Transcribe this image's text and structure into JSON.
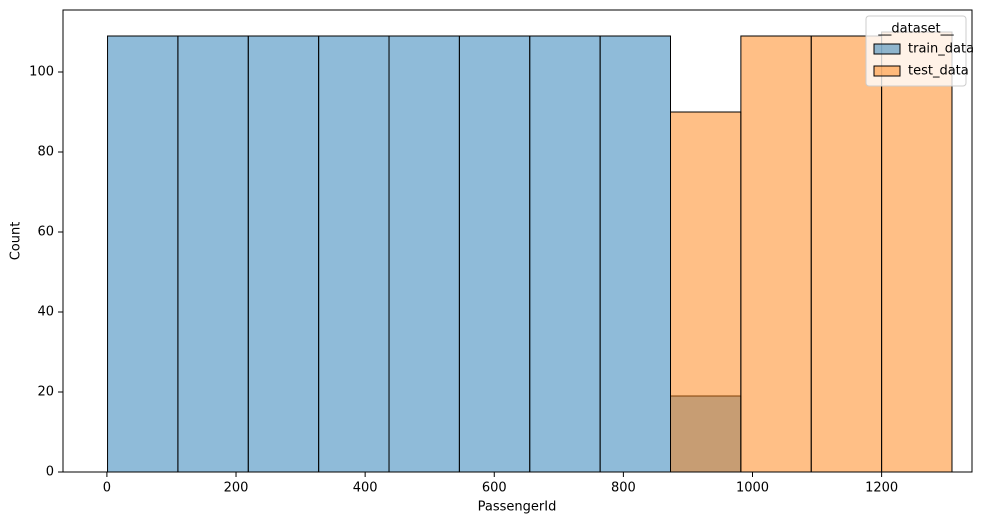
{
  "chart_data": {
    "type": "histogram",
    "xlabel": "PassengerId",
    "ylabel": "Count",
    "bins": [
      1,
      110,
      219,
      328,
      437,
      546,
      655,
      764,
      873,
      982,
      1091,
      1200,
      1309
    ],
    "series": [
      {
        "name": "train_data",
        "color": "#1f77b4",
        "values": [
          109,
          109,
          109,
          109,
          109,
          109,
          109,
          109,
          19,
          0,
          0,
          0
        ]
      },
      {
        "name": "test_data",
        "color": "#ff7f0e",
        "values": [
          0,
          0,
          0,
          0,
          0,
          0,
          0,
          0,
          90,
          109,
          109,
          110
        ]
      }
    ],
    "legend_title": "__dataset__",
    "legend": "upper right",
    "xlim": [
      -68,
      1340
    ],
    "xticks": [
      0,
      200,
      400,
      600,
      800,
      1000,
      1200
    ],
    "ylim": [
      0,
      115.5
    ],
    "yticks": [
      0,
      20,
      40,
      60,
      80,
      100
    ]
  }
}
